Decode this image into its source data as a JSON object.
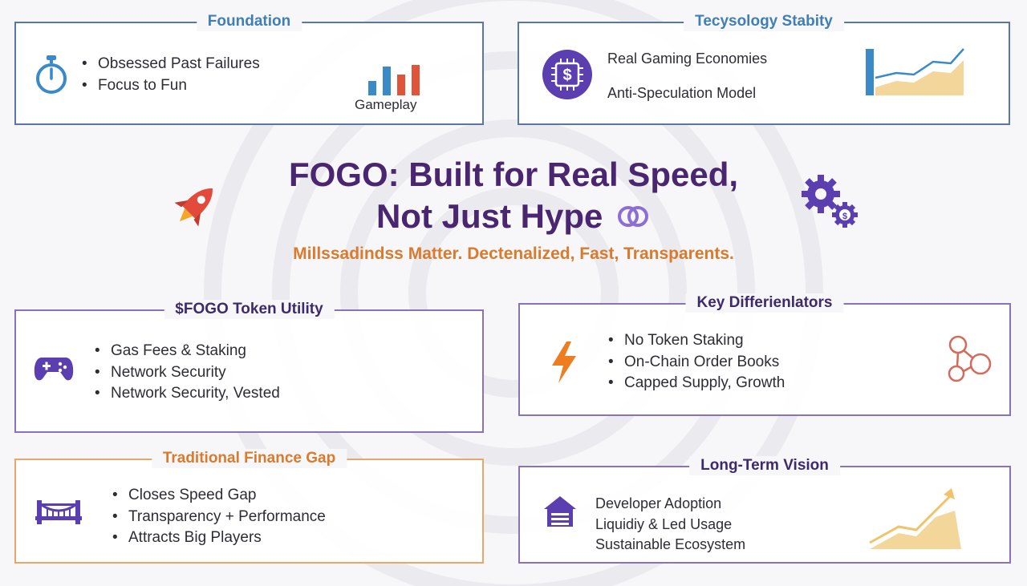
{
  "header": {
    "title_line1": "FOGO: Built for Real Speed,",
    "title_line2": "Not Just Hype",
    "subtitle": "Millssadindss Matter. Dectenalized, Fast, Transparents."
  },
  "panels": {
    "foundation": {
      "title": "Foundation",
      "items": [
        "Obsessed Past Failures",
        "Focus to Fun"
      ],
      "chart_label": "Gameplay",
      "icon": "stopwatch-icon"
    },
    "technology": {
      "title": "Tecysology Stabity",
      "items": [
        "Real Gaming Economies",
        "Anti-Speculation Model"
      ],
      "icon": "dollar-chip-icon"
    },
    "token_utility": {
      "title": "$FOGO Token Utility",
      "items": [
        "Gas Fees & Staking",
        "Network Security",
        "Network Security, Vested"
      ],
      "icon": "gamepad-icon"
    },
    "differentiators": {
      "title": "Key Differienlators",
      "items": [
        "No Token Staking",
        "On-Chain Order Books",
        "Capped Supply, Growth"
      ],
      "icon": "lightning-icon"
    },
    "finance_gap": {
      "title": "Traditional Finance Gap",
      "items": [
        "Closes Speed Gap",
        "Transparency + Performance",
        "Attracts Big Players"
      ],
      "icon": "bridge-icon"
    },
    "vision": {
      "title": "Long-Term Vision",
      "items": [
        "Developer Adoption",
        "Liquidiy & Led Usage",
        "Sustainable Ecosystem"
      ],
      "icon": "house-icon"
    }
  },
  "colors": {
    "title_purple": "#4a2570",
    "accent_orange": "#d97a2c",
    "accent_blue": "#3f7fb6",
    "icon_purple": "#5b3fb0"
  }
}
